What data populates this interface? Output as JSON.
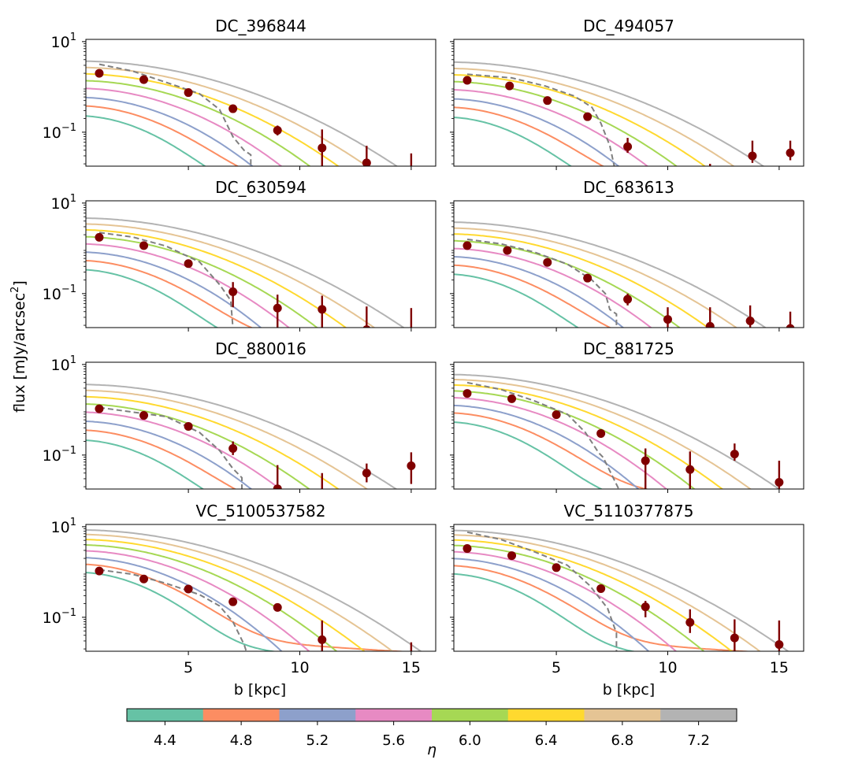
{
  "chart_data": {
    "type": "line",
    "ylabel": "flux [mJy/arcsec",
    "ylabel_sup": "2",
    "ylabel_end": "]",
    "xlabel": "b [kpc]",
    "xlim": [
      0.4,
      16.1
    ],
    "ylim_log10": [
      -1.75,
      1.05
    ],
    "scale_y": "log",
    "xticks": [
      5,
      10,
      15
    ],
    "xtick_labels": [
      "5",
      "10",
      "15"
    ],
    "yticks_log10": [
      1,
      -1
    ],
    "ytick_base": "10",
    "ytick_exponents": [
      "1",
      "−1"
    ],
    "colorbar": {
      "label": "η",
      "colors": [
        "#66c2a5",
        "#fc8d62",
        "#8da0cb",
        "#e78ac3",
        "#a6d854",
        "#ffd92f",
        "#e5c494",
        "#b3b3b3"
      ],
      "tick_labels": [
        "4.4",
        "4.8",
        "5.2",
        "5.6",
        "6.0",
        "6.4",
        "6.8",
        "7.2"
      ]
    },
    "panels": [
      {
        "title": "DC_396844",
        "models_log10_start": [
          -0.65,
          -0.43,
          -0.23,
          -0.03,
          0.14,
          0.29,
          0.43,
          0.57
        ],
        "dashed": [
          [
            1.0,
            0.5
          ],
          [
            2.5,
            0.35
          ],
          [
            4.0,
            0.1
          ],
          [
            5.5,
            -0.15
          ],
          [
            6.4,
            -0.5
          ],
          [
            7.0,
            -1.1
          ],
          [
            7.5,
            -1.4
          ],
          [
            7.8,
            -1.5
          ],
          [
            7.8,
            -1.75
          ]
        ],
        "points": [
          {
            "x": 1.0,
            "y": 2.0,
            "lo": 1.7,
            "hi": 2.3
          },
          {
            "x": 3.0,
            "y": 1.45,
            "lo": 1.25,
            "hi": 1.7
          },
          {
            "x": 5.0,
            "y": 0.75,
            "lo": 0.62,
            "hi": 0.9
          },
          {
            "x": 7.0,
            "y": 0.33,
            "lo": 0.27,
            "hi": 0.4
          },
          {
            "x": 9.0,
            "y": 0.11,
            "lo": 0.085,
            "hi": 0.14
          },
          {
            "x": 11.0,
            "y": 0.045,
            "lo": 0.015,
            "hi": 0.115
          },
          {
            "x": 13.0,
            "y": 0.021,
            "lo": 0.001,
            "hi": 0.05
          },
          {
            "x": 15.0,
            "y": null,
            "lo": 0.001,
            "hi": 0.034
          }
        ]
      },
      {
        "title": "DC_494057",
        "models_log10_start": [
          -0.68,
          -0.46,
          -0.26,
          -0.06,
          0.12,
          0.27,
          0.41,
          0.55
        ],
        "dashed": [
          [
            1.0,
            0.28
          ],
          [
            3.0,
            0.2
          ],
          [
            4.5,
            0.02
          ],
          [
            5.8,
            -0.2
          ],
          [
            6.6,
            -0.45
          ],
          [
            7.0,
            -0.8
          ],
          [
            7.4,
            -1.3
          ],
          [
            7.6,
            -1.75
          ]
        ],
        "points": [
          {
            "x": 1.0,
            "y": 1.4,
            "lo": 1.2,
            "hi": 1.6
          },
          {
            "x": 2.9,
            "y": 1.05,
            "lo": 0.9,
            "hi": 1.2
          },
          {
            "x": 4.6,
            "y": 0.5,
            "lo": 0.42,
            "hi": 0.6
          },
          {
            "x": 6.4,
            "y": 0.22,
            "lo": 0.18,
            "hi": 0.26
          },
          {
            "x": 8.2,
            "y": 0.048,
            "lo": 0.035,
            "hi": 0.075
          },
          {
            "x": 10.0,
            "y": null,
            "lo": 0.001,
            "hi": 0.008
          },
          {
            "x": 11.9,
            "y": null,
            "lo": 0.001,
            "hi": 0.02
          },
          {
            "x": 13.8,
            "y": 0.03,
            "lo": 0.021,
            "hi": 0.065
          },
          {
            "x": 15.5,
            "y": 0.035,
            "lo": 0.024,
            "hi": 0.065
          }
        ]
      },
      {
        "title": "DC_630594",
        "models_log10_start": [
          -0.48,
          -0.28,
          -0.08,
          0.1,
          0.26,
          0.41,
          0.54,
          0.67
        ],
        "dashed": [
          [
            1.0,
            0.35
          ],
          [
            2.5,
            0.25
          ],
          [
            4.0,
            0.05
          ],
          [
            5.5,
            -0.3
          ],
          [
            6.4,
            -0.8
          ],
          [
            6.9,
            -1.15
          ],
          [
            7.0,
            -1.75
          ]
        ],
        "points": [
          {
            "x": 1.0,
            "y": 1.75,
            "lo": 1.5,
            "hi": 2.0
          },
          {
            "x": 3.0,
            "y": 1.15,
            "lo": 1.0,
            "hi": 1.35
          },
          {
            "x": 5.0,
            "y": 0.46,
            "lo": 0.38,
            "hi": 0.55
          },
          {
            "x": 7.0,
            "y": 0.11,
            "lo": 0.05,
            "hi": 0.18
          },
          {
            "x": 9.0,
            "y": 0.048,
            "lo": 0.018,
            "hi": 0.095
          },
          {
            "x": 11.0,
            "y": 0.045,
            "lo": 0.011,
            "hi": 0.09
          },
          {
            "x": 13.0,
            "y": 0.016,
            "lo": 0.001,
            "hi": 0.052
          },
          {
            "x": 15.0,
            "y": null,
            "lo": 0.001,
            "hi": 0.048
          }
        ]
      },
      {
        "title": "DC_683613",
        "models_log10_start": [
          -0.58,
          -0.38,
          -0.18,
          0.0,
          0.17,
          0.32,
          0.45,
          0.58
        ],
        "dashed": [
          [
            1.0,
            0.2
          ],
          [
            2.5,
            0.1
          ],
          [
            4.0,
            -0.08
          ],
          [
            5.5,
            -0.35
          ],
          [
            6.6,
            -0.7
          ],
          [
            7.2,
            -1.0
          ],
          [
            7.4,
            -1.35
          ],
          [
            7.7,
            -1.45
          ],
          [
            7.7,
            -1.75
          ]
        ],
        "points": [
          {
            "x": 1.0,
            "y": 1.15,
            "lo": 1.0,
            "hi": 1.3
          },
          {
            "x": 2.8,
            "y": 0.9,
            "lo": 0.78,
            "hi": 1.02
          },
          {
            "x": 4.6,
            "y": 0.49,
            "lo": 0.41,
            "hi": 0.57
          },
          {
            "x": 6.4,
            "y": 0.22,
            "lo": 0.18,
            "hi": 0.26
          },
          {
            "x": 8.2,
            "y": 0.075,
            "lo": 0.055,
            "hi": 0.1
          },
          {
            "x": 10.0,
            "y": 0.027,
            "lo": 0.001,
            "hi": 0.05
          },
          {
            "x": 11.9,
            "y": 0.019,
            "lo": 0.001,
            "hi": 0.05
          },
          {
            "x": 13.7,
            "y": 0.025,
            "lo": 0.001,
            "hi": 0.055
          },
          {
            "x": 15.5,
            "y": 0.017,
            "lo": 0.001,
            "hi": 0.04
          }
        ]
      },
      {
        "title": "DC_880016",
        "models_log10_start": [
          -0.68,
          -0.46,
          -0.25,
          -0.05,
          0.13,
          0.29,
          0.43,
          0.56
        ],
        "dashed": [
          [
            1.0,
            0.05
          ],
          [
            2.5,
            -0.05
          ],
          [
            4.0,
            -0.15
          ],
          [
            5.5,
            -0.5
          ],
          [
            6.4,
            -0.9
          ],
          [
            7.0,
            -1.3
          ],
          [
            7.4,
            -1.5
          ],
          [
            7.4,
            -1.75
          ]
        ],
        "points": [
          {
            "x": 1.0,
            "y": 1.05,
            "lo": 0.92,
            "hi": 1.2
          },
          {
            "x": 3.0,
            "y": 0.75,
            "lo": 0.64,
            "hi": 0.87
          },
          {
            "x": 5.0,
            "y": 0.43,
            "lo": 0.36,
            "hi": 0.51
          },
          {
            "x": 7.0,
            "y": 0.14,
            "lo": 0.1,
            "hi": 0.2
          },
          {
            "x": 9.0,
            "y": 0.018,
            "lo": 0.001,
            "hi": 0.06
          },
          {
            "x": 11.0,
            "y": null,
            "lo": 0.001,
            "hi": 0.04
          },
          {
            "x": 13.0,
            "y": 0.04,
            "lo": 0.025,
            "hi": 0.065
          },
          {
            "x": 15.0,
            "y": 0.058,
            "lo": 0.023,
            "hi": 0.115
          }
        ]
      },
      {
        "title": "DC_881725",
        "models_log10_start": [
          -0.28,
          -0.08,
          0.1,
          0.27,
          0.42,
          0.55,
          0.67,
          0.78
        ],
        "dashed": [
          [
            1.0,
            0.6
          ],
          [
            2.5,
            0.45
          ],
          [
            4.0,
            0.2
          ],
          [
            5.5,
            -0.1
          ],
          [
            6.3,
            -0.5
          ],
          [
            6.9,
            -0.95
          ],
          [
            7.1,
            -1.05
          ],
          [
            7.8,
            -1.75
          ]
        ],
        "points": [
          {
            "x": 1.0,
            "y": 2.3,
            "lo": 2.0,
            "hi": 2.6
          },
          {
            "x": 3.0,
            "y": 1.75,
            "lo": 1.5,
            "hi": 2.0
          },
          {
            "x": 5.0,
            "y": 0.78,
            "lo": 0.66,
            "hi": 0.92
          },
          {
            "x": 7.0,
            "y": 0.3,
            "lo": 0.24,
            "hi": 0.37
          },
          {
            "x": 9.0,
            "y": 0.075,
            "lo": 0.013,
            "hi": 0.14
          },
          {
            "x": 11.0,
            "y": 0.048,
            "lo": 0.001,
            "hi": 0.12
          },
          {
            "x": 13.0,
            "y": 0.105,
            "lo": 0.075,
            "hi": 0.18
          },
          {
            "x": 15.0,
            "y": 0.025,
            "lo": 0.001,
            "hi": 0.075
          }
        ]
      },
      {
        "title": "VC_5100537582",
        "models_log10_start": [
          -0.02,
          0.16,
          0.32,
          0.47,
          0.6,
          0.72,
          0.83,
          0.93
        ],
        "dashed": [
          [
            1.0,
            0.05
          ],
          [
            2.5,
            -0.05
          ],
          [
            4.0,
            -0.25
          ],
          [
            5.5,
            -0.5
          ],
          [
            6.4,
            -0.75
          ],
          [
            7.0,
            -1.1
          ],
          [
            7.5,
            -1.6
          ],
          [
            7.6,
            -1.75
          ]
        ],
        "points": [
          {
            "x": 1.0,
            "y": 1.05,
            "lo": 0.92,
            "hi": 1.2
          },
          {
            "x": 3.0,
            "y": 0.7,
            "lo": 0.6,
            "hi": 0.82
          },
          {
            "x": 5.0,
            "y": 0.42,
            "lo": 0.35,
            "hi": 0.5
          },
          {
            "x": 7.0,
            "y": 0.22,
            "lo": 0.18,
            "hi": 0.27
          },
          {
            "x": 9.0,
            "y": 0.165,
            "lo": 0.14,
            "hi": 0.19
          },
          {
            "x": 11.0,
            "y": 0.032,
            "lo": 0.001,
            "hi": 0.085
          },
          {
            "x": 13.0,
            "y": null,
            "lo": 0.001,
            "hi": 0.001
          },
          {
            "x": 15.0,
            "y": null,
            "lo": 0.001,
            "hi": 0.028
          }
        ]
      },
      {
        "title": "VC_5110377875",
        "models_log10_start": [
          -0.05,
          0.13,
          0.3,
          0.45,
          0.59,
          0.71,
          0.82,
          0.92
        ],
        "dashed": [
          [
            1.0,
            0.88
          ],
          [
            2.5,
            0.72
          ],
          [
            4.0,
            0.45
          ],
          [
            5.5,
            0.15
          ],
          [
            6.5,
            -0.3
          ],
          [
            7.3,
            -0.8
          ],
          [
            7.7,
            -1.35
          ],
          [
            7.7,
            -1.75
          ]
        ],
        "points": [
          {
            "x": 1.0,
            "y": 3.3,
            "lo": 2.9,
            "hi": 3.7
          },
          {
            "x": 3.0,
            "y": 2.3,
            "lo": 2.0,
            "hi": 2.6
          },
          {
            "x": 5.0,
            "y": 1.25,
            "lo": 1.08,
            "hi": 1.45
          },
          {
            "x": 7.0,
            "y": 0.43,
            "lo": 0.36,
            "hi": 0.5
          },
          {
            "x": 9.0,
            "y": 0.17,
            "lo": 0.1,
            "hi": 0.23
          },
          {
            "x": 11.0,
            "y": 0.077,
            "lo": 0.045,
            "hi": 0.15
          },
          {
            "x": 13.0,
            "y": 0.035,
            "lo": 0.001,
            "hi": 0.09
          },
          {
            "x": 15.0,
            "y": 0.025,
            "lo": 0.001,
            "hi": 0.085
          }
        ]
      }
    ]
  }
}
